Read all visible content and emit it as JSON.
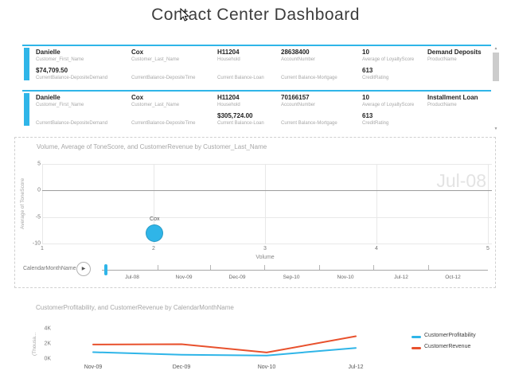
{
  "title": "Contact Center Dashboard",
  "colors": {
    "accent": "#2fb5e8",
    "revenue_red": "#e8512d",
    "chart_title": "#a6a6a6"
  },
  "icons": {
    "play": "▶",
    "scroll_up": "▲",
    "scroll_down": "▼"
  },
  "cards": {
    "rows": [
      {
        "cells": [
          {
            "v1": "Danielle",
            "l1": "Customer_First_Name",
            "v2": "$74,709.50",
            "l2": "CurrentBalance-DepositeDemand"
          },
          {
            "v1": "Cox",
            "l1": "Customer_Last_Name",
            "v2": "",
            "l2": "CurrentBalance-DepositeTime"
          },
          {
            "v1": "H11204",
            "l1": "Household",
            "v2": "",
            "l2": "Current Balance-Loan"
          },
          {
            "v1": "28638400",
            "l1": "AccountNumber",
            "v2": "",
            "l2": "Current Balance-Mortgage"
          },
          {
            "v1": "10",
            "l1": "Average of LoyaltyScore",
            "v2": "613",
            "l2": "CreditRating"
          },
          {
            "v1": "Demand Deposits",
            "l1": "ProductName",
            "v2": "",
            "l2": ""
          }
        ]
      },
      {
        "cells": [
          {
            "v1": "Danielle",
            "l1": "Customer_First_Name",
            "v2": "",
            "l2": "CurrentBalance-DepositeDemand"
          },
          {
            "v1": "Cox",
            "l1": "Customer_Last_Name",
            "v2": "",
            "l2": "CurrentBalance-DepositeTime"
          },
          {
            "v1": "H11204",
            "l1": "Household",
            "v2": "$305,724.00",
            "l2": "Current Balance-Loan"
          },
          {
            "v1": "70166157",
            "l1": "AccountNumber",
            "v2": "",
            "l2": "Current Balance-Mortgage"
          },
          {
            "v1": "10",
            "l1": "Average of LoyaltyScore",
            "v2": "613",
            "l2": "CreditRating"
          },
          {
            "v1": "Installment Loan",
            "l1": "ProductName",
            "v2": "",
            "l2": ""
          }
        ]
      }
    ]
  },
  "chart_data": [
    {
      "type": "scatter",
      "title": "Volume, Average of ToneScore, and CustomerRevenue by Customer_Last_Name",
      "xlabel": "Volume",
      "ylabel": "Average of ToneScore",
      "xlim": [
        1,
        5
      ],
      "ylim": [
        -10,
        5
      ],
      "x_ticks": [
        "1",
        "2",
        "3",
        "4",
        "5"
      ],
      "y_ticks": [
        "5",
        "0",
        "-5",
        "-10"
      ],
      "grid": true,
      "watermark": "Jul-08",
      "points": [
        {
          "label": "Cox",
          "x": 2,
          "y": -8,
          "radius_px": 11,
          "color": "#2fb5e8"
        }
      ],
      "play_axis": {
        "label": "CalendarMonthName",
        "current": "Jul-08",
        "ticks": [
          "Jul-08",
          "Nov-09",
          "Dec-09",
          "Sep-10",
          "Nov-10",
          "Jul-12",
          "Oct-12"
        ]
      }
    },
    {
      "type": "line",
      "title": "CustomerProfitability, and CustomerRevenue by CalendarMonthName",
      "xlabel": "",
      "ylabel": "(Thousa...",
      "categories": [
        "Nov-09",
        "Dec-09",
        "Nov-10",
        "Jul-12"
      ],
      "series": [
        {
          "name": "CustomerProfitability",
          "color": "#2fb5e8",
          "values": [
            0.9,
            0.55,
            0.45,
            1.45
          ]
        },
        {
          "name": "CustomerRevenue",
          "color": "#e8512d",
          "values": [
            1.9,
            1.95,
            0.85,
            3.0
          ]
        }
      ],
      "y_ticks": [
        "4K",
        "2K",
        "0K"
      ],
      "ylim": [
        0,
        4
      ],
      "grid": false,
      "legend_position": "right"
    }
  ]
}
